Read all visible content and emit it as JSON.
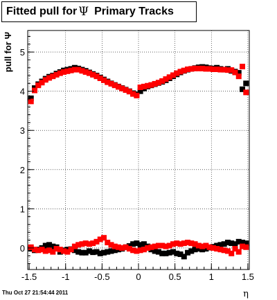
{
  "title": {
    "prefix": "Fitted pull for",
    "symbol": "Ψ",
    "suffix": "Primary Tracks"
  },
  "footer": {
    "timestamp": "Thu Oct 27 21:54:44 2011"
  },
  "chart_data": {
    "type": "scatter",
    "title": "Fitted pull for Ψ Primary Tracks",
    "xlabel": "η",
    "ylabel": "pull for Ψ",
    "xlim": [
      -1.52,
      1.52
    ],
    "ylim": [
      -0.55,
      5.55
    ],
    "xticks": [
      "-1.5",
      "-1",
      "-0.5",
      "0",
      "0.5",
      "1",
      "1.5"
    ],
    "yticks": [
      "0",
      "1",
      "2",
      "3",
      "4",
      "5"
    ],
    "grid": true,
    "marker": "square",
    "colors": {
      "black": "#000000",
      "red": "#ff0000"
    },
    "series": [
      {
        "color": "#000000",
        "x": [
          -1.475,
          -1.425,
          -1.375,
          -1.325,
          -1.275,
          -1.225,
          -1.175,
          -1.125,
          -1.075,
          -1.025,
          -0.975,
          -0.925,
          -0.875,
          -0.825,
          -0.775,
          -0.725,
          -0.675,
          -0.625,
          -0.575,
          -0.525,
          -0.475,
          -0.425,
          -0.375,
          -0.325,
          -0.275,
          -0.225,
          -0.175,
          -0.125,
          -0.075,
          -0.025,
          0.025,
          0.075,
          0.125,
          0.175,
          0.225,
          0.275,
          0.325,
          0.375,
          0.425,
          0.475,
          0.525,
          0.575,
          0.625,
          0.675,
          0.725,
          0.775,
          0.825,
          0.875,
          0.925,
          0.975,
          1.025,
          1.075,
          1.125,
          1.175,
          1.225,
          1.275,
          1.325,
          1.375,
          1.425,
          1.475
        ],
        "y": [
          3.82,
          4.08,
          4.18,
          4.25,
          4.32,
          4.37,
          4.4,
          4.45,
          4.49,
          4.53,
          4.55,
          4.57,
          4.6,
          4.58,
          4.55,
          4.52,
          4.48,
          4.44,
          4.4,
          4.35,
          4.3,
          4.25,
          4.2,
          4.16,
          4.12,
          4.08,
          4.04,
          4.0,
          3.95,
          3.92,
          4.0,
          4.07,
          4.12,
          4.15,
          4.18,
          4.21,
          4.24,
          4.28,
          4.33,
          4.38,
          4.43,
          4.48,
          4.52,
          4.55,
          4.57,
          4.59,
          4.61,
          4.62,
          4.61,
          4.59,
          4.58,
          4.6,
          4.57,
          4.55,
          4.57,
          4.52,
          4.5,
          4.47,
          4.05,
          4.2
        ]
      },
      {
        "color": "#ff0000",
        "x": [
          -1.475,
          -1.425,
          -1.375,
          -1.325,
          -1.275,
          -1.225,
          -1.175,
          -1.125,
          -1.075,
          -1.025,
          -0.975,
          -0.925,
          -0.875,
          -0.825,
          -0.775,
          -0.725,
          -0.675,
          -0.625,
          -0.575,
          -0.525,
          -0.475,
          -0.425,
          -0.375,
          -0.325,
          -0.275,
          -0.225,
          -0.175,
          -0.125,
          -0.075,
          -0.025,
          0.025,
          0.075,
          0.125,
          0.175,
          0.225,
          0.275,
          0.325,
          0.375,
          0.425,
          0.475,
          0.525,
          0.575,
          0.625,
          0.675,
          0.725,
          0.775,
          0.825,
          0.875,
          0.925,
          0.975,
          1.025,
          1.075,
          1.125,
          1.175,
          1.225,
          1.275,
          1.325,
          1.375,
          1.425,
          1.475
        ],
        "y": [
          3.74,
          4.02,
          4.15,
          4.22,
          4.29,
          4.34,
          4.38,
          4.42,
          4.46,
          4.49,
          4.51,
          4.53,
          4.55,
          4.55,
          4.52,
          4.49,
          4.46,
          4.42,
          4.38,
          4.33,
          4.28,
          4.23,
          4.19,
          4.15,
          4.11,
          4.07,
          4.03,
          3.99,
          3.93,
          3.89,
          4.1,
          4.12,
          4.14,
          4.16,
          4.19,
          4.22,
          4.26,
          4.31,
          4.36,
          4.41,
          4.46,
          4.5,
          4.53,
          4.56,
          4.57,
          4.58,
          4.58,
          4.58,
          4.57,
          4.57,
          4.56,
          4.56,
          4.55,
          4.55,
          4.54,
          4.54,
          4.48,
          4.38,
          4.63,
          3.97
        ]
      },
      {
        "color": "#000000",
        "x": [
          -1.475,
          -1.425,
          -1.375,
          -1.325,
          -1.275,
          -1.225,
          -1.175,
          -1.125,
          -1.075,
          -1.025,
          -0.975,
          -0.925,
          -0.875,
          -0.825,
          -0.775,
          -0.725,
          -0.675,
          -0.625,
          -0.575,
          -0.525,
          -0.475,
          -0.425,
          -0.375,
          -0.325,
          -0.275,
          -0.225,
          -0.175,
          -0.125,
          -0.075,
          -0.025,
          0.025,
          0.075,
          0.125,
          0.175,
          0.225,
          0.275,
          0.325,
          0.375,
          0.425,
          0.475,
          0.525,
          0.575,
          0.625,
          0.675,
          0.725,
          0.775,
          0.825,
          0.875,
          0.925,
          0.975,
          1.025,
          1.075,
          1.125,
          1.175,
          1.225,
          1.275,
          1.325,
          1.375,
          1.425,
          1.475
        ],
        "y": [
          -0.02,
          -0.06,
          -0.04,
          0.0,
          0.06,
          0.08,
          0.04,
          0.02,
          -0.1,
          -0.06,
          -0.04,
          -0.03,
          -0.06,
          -0.1,
          -0.12,
          -0.12,
          -0.08,
          -0.11,
          -0.1,
          -0.14,
          -0.12,
          -0.1,
          -0.08,
          -0.06,
          -0.04,
          -0.02,
          0.02,
          0.05,
          0.1,
          0.12,
          0.08,
          0.1,
          0.04,
          -0.04,
          -0.08,
          -0.1,
          -0.14,
          -0.14,
          -0.12,
          -0.1,
          -0.14,
          -0.16,
          -0.22,
          -0.12,
          -0.08,
          -0.04,
          -0.02,
          -0.04,
          -0.02,
          0.01,
          0.03,
          0.06,
          0.08,
          0.1,
          0.14,
          0.12,
          0.1,
          0.16,
          0.14,
          0.12
        ]
      },
      {
        "color": "#ff0000",
        "x": [
          -1.475,
          -1.425,
          -1.375,
          -1.325,
          -1.275,
          -1.225,
          -1.175,
          -1.125,
          -1.075,
          -1.025,
          -0.975,
          -0.925,
          -0.875,
          -0.825,
          -0.775,
          -0.725,
          -0.675,
          -0.625,
          -0.575,
          -0.525,
          -0.475,
          -0.425,
          -0.375,
          -0.325,
          -0.275,
          -0.225,
          -0.175,
          -0.125,
          -0.075,
          -0.025,
          0.025,
          0.075,
          0.125,
          0.175,
          0.225,
          0.275,
          0.325,
          0.375,
          0.425,
          0.475,
          0.525,
          0.575,
          0.625,
          0.675,
          0.725,
          0.775,
          0.825,
          0.875,
          0.925,
          0.975,
          1.025,
          1.075,
          1.125,
          1.175,
          1.225,
          1.275,
          1.325,
          1.375,
          1.425,
          1.475
        ],
        "y": [
          0.02,
          -0.04,
          -0.06,
          -0.04,
          -0.08,
          -0.06,
          -0.1,
          -0.02,
          -0.04,
          -0.08,
          -0.1,
          -0.04,
          0.04,
          0.08,
          0.1,
          0.12,
          0.1,
          0.12,
          0.16,
          0.22,
          0.26,
          0.14,
          0.08,
          0.04,
          0.02,
          0.0,
          0.02,
          -0.02,
          -0.06,
          -0.08,
          -0.06,
          -0.04,
          0.0,
          0.02,
          0.04,
          0.06,
          0.06,
          0.04,
          0.06,
          0.1,
          0.12,
          0.1,
          0.12,
          0.14,
          0.12,
          0.1,
          0.06,
          0.04,
          0.06,
          0.02,
          0.0,
          -0.02,
          -0.04,
          -0.06,
          -0.08,
          -0.14,
          -0.02,
          -0.1,
          0.04,
          0.02
        ]
      }
    ]
  }
}
